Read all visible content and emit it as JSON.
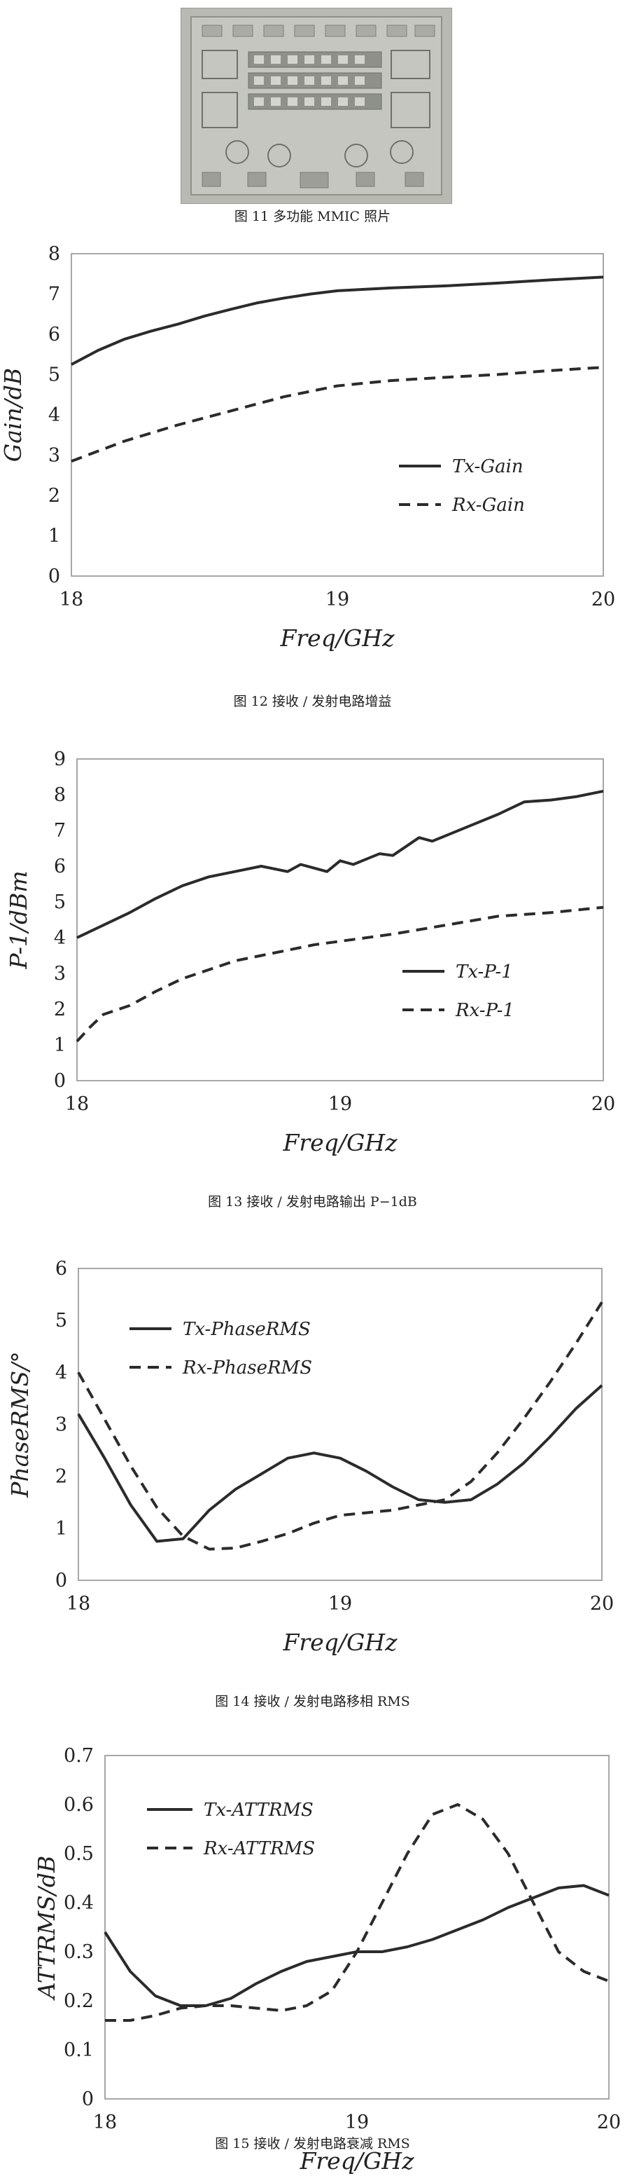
{
  "figure11": {
    "caption": "图 11 多功能 MMIC 照片"
  },
  "charts": [
    {
      "type": "line",
      "caption": "图 12 接收 / 发射电路增益",
      "xlabel": "Freq/GHz",
      "ylabel": "Gain/dB",
      "xlim": [
        18,
        20
      ],
      "ylim": [
        0,
        8
      ],
      "xticks": [
        "18",
        "19",
        "20"
      ],
      "yticks": [
        "0",
        "1",
        "2",
        "3",
        "4",
        "5",
        "6",
        "7",
        "8"
      ],
      "legend_position": "right-middle",
      "series": [
        {
          "name": "Tx-Gain",
          "style": "solid",
          "x": [
            18,
            18.1,
            18.2,
            18.3,
            18.4,
            18.5,
            18.6,
            18.7,
            18.8,
            18.9,
            19,
            19.2,
            19.4,
            19.6,
            19.8,
            20
          ],
          "y": [
            5.25,
            5.6,
            5.88,
            6.08,
            6.25,
            6.45,
            6.62,
            6.78,
            6.9,
            7.0,
            7.08,
            7.15,
            7.2,
            7.27,
            7.35,
            7.42
          ]
        },
        {
          "name": "Rx-Gain",
          "style": "dashed",
          "x": [
            18,
            18.2,
            18.4,
            18.6,
            18.8,
            19,
            19.2,
            19.4,
            19.6,
            19.8,
            20
          ],
          "y": [
            2.85,
            3.35,
            3.75,
            4.1,
            4.45,
            4.72,
            4.85,
            4.93,
            5.0,
            5.1,
            5.18
          ]
        }
      ]
    },
    {
      "type": "line",
      "caption": "图 13 接收 / 发射电路输出 P−1dB",
      "xlabel": "Freq/GHz",
      "ylabel": "P-1/dBm",
      "xlim": [
        18,
        20
      ],
      "ylim": [
        0,
        9
      ],
      "xticks": [
        "18",
        "19",
        "20"
      ],
      "yticks": [
        "0",
        "1",
        "2",
        "3",
        "4",
        "5",
        "6",
        "7",
        "8",
        "9"
      ],
      "legend_position": "right-middle",
      "series": [
        {
          "name": "Tx-P-1",
          "style": "solid",
          "x": [
            18,
            18.1,
            18.2,
            18.3,
            18.4,
            18.5,
            18.6,
            18.7,
            18.8,
            18.85,
            18.9,
            18.95,
            19.0,
            19.05,
            19.1,
            19.15,
            19.2,
            19.3,
            19.35,
            19.4,
            19.5,
            19.6,
            19.7,
            19.8,
            19.9,
            20.0
          ],
          "y": [
            4.0,
            4.35,
            4.7,
            5.1,
            5.45,
            5.7,
            5.85,
            6.0,
            5.85,
            6.05,
            5.95,
            5.85,
            6.15,
            6.05,
            6.2,
            6.35,
            6.3,
            6.8,
            6.7,
            6.85,
            7.15,
            7.45,
            7.8,
            7.85,
            7.95,
            8.1
          ]
        },
        {
          "name": "Rx-P-1",
          "style": "dashed",
          "x": [
            18,
            18.05,
            18.1,
            18.2,
            18.3,
            18.4,
            18.5,
            18.6,
            18.7,
            18.8,
            18.9,
            19.0,
            19.2,
            19.4,
            19.6,
            19.8,
            20.0
          ],
          "y": [
            1.1,
            1.5,
            1.85,
            2.1,
            2.5,
            2.85,
            3.1,
            3.35,
            3.5,
            3.65,
            3.8,
            3.9,
            4.1,
            4.35,
            4.6,
            4.7,
            4.85
          ]
        }
      ]
    },
    {
      "type": "line",
      "caption": "图 14 接收 / 发射电路移相 RMS",
      "xlabel": "Freq/GHz",
      "ylabel": "PhaseRMS/°",
      "xlim": [
        18,
        20
      ],
      "ylim": [
        0,
        6
      ],
      "xticks": [
        "18",
        "19",
        "20"
      ],
      "yticks": [
        "0",
        "1",
        "2",
        "3",
        "4",
        "5",
        "6"
      ],
      "legend_position": "top-left",
      "series": [
        {
          "name": "Tx-PhaseRMS",
          "style": "solid",
          "x": [
            18,
            18.1,
            18.2,
            18.3,
            18.4,
            18.5,
            18.6,
            18.7,
            18.8,
            18.9,
            19.0,
            19.1,
            19.2,
            19.3,
            19.4,
            19.5,
            19.6,
            19.7,
            19.8,
            19.9,
            20.0
          ],
          "y": [
            3.2,
            2.35,
            1.45,
            0.75,
            0.8,
            1.35,
            1.75,
            2.05,
            2.35,
            2.45,
            2.35,
            2.1,
            1.8,
            1.55,
            1.5,
            1.55,
            1.85,
            2.25,
            2.75,
            3.3,
            3.75
          ]
        },
        {
          "name": "Rx-PhaseRMS",
          "style": "dashed",
          "x": [
            18,
            18.1,
            18.2,
            18.3,
            18.4,
            18.5,
            18.6,
            18.7,
            18.8,
            18.9,
            19.0,
            19.1,
            19.2,
            19.3,
            19.4,
            19.5,
            19.6,
            19.7,
            19.8,
            19.9,
            20.0
          ],
          "y": [
            4.0,
            3.1,
            2.2,
            1.4,
            0.85,
            0.6,
            0.62,
            0.75,
            0.9,
            1.1,
            1.25,
            1.3,
            1.35,
            1.45,
            1.55,
            1.9,
            2.45,
            3.1,
            3.8,
            4.55,
            5.35
          ]
        }
      ]
    },
    {
      "type": "line",
      "caption": "图 15 接收 / 发射电路衰减 RMS",
      "xlabel": "Freq/GHz",
      "ylabel": "ATTRMS/dB",
      "xlim": [
        18,
        20
      ],
      "ylim": [
        0,
        0.7
      ],
      "xticks": [
        "18",
        "19",
        "20"
      ],
      "yticks": [
        "0",
        "0.1",
        "0.2",
        "0.3",
        "0.4",
        "0.5",
        "0.6",
        "0.7"
      ],
      "legend_position": "top-left",
      "series": [
        {
          "name": "Tx-ATTRMS",
          "style": "solid",
          "x": [
            18,
            18.1,
            18.2,
            18.3,
            18.4,
            18.5,
            18.6,
            18.7,
            18.8,
            18.9,
            19.0,
            19.1,
            19.2,
            19.3,
            19.4,
            19.5,
            19.6,
            19.7,
            19.8,
            19.9,
            20.0
          ],
          "y": [
            0.34,
            0.26,
            0.21,
            0.19,
            0.19,
            0.205,
            0.235,
            0.26,
            0.28,
            0.29,
            0.3,
            0.3,
            0.31,
            0.325,
            0.345,
            0.365,
            0.39,
            0.41,
            0.43,
            0.435,
            0.415
          ]
        },
        {
          "name": "Rx-ATTRMS",
          "style": "dashed",
          "x": [
            18,
            18.1,
            18.2,
            18.3,
            18.4,
            18.5,
            18.6,
            18.7,
            18.8,
            18.9,
            19.0,
            19.1,
            19.2,
            19.3,
            19.4,
            19.5,
            19.6,
            19.7,
            19.8,
            19.9,
            20.0
          ],
          "y": [
            0.16,
            0.16,
            0.17,
            0.185,
            0.19,
            0.19,
            0.185,
            0.18,
            0.19,
            0.22,
            0.3,
            0.4,
            0.5,
            0.58,
            0.6,
            0.57,
            0.5,
            0.4,
            0.3,
            0.26,
            0.24
          ]
        }
      ]
    }
  ],
  "chart_data": [
    {
      "type": "line",
      "title": "",
      "xlabel": "Freq/GHz",
      "ylabel": "Gain/dB",
      "xlim": [
        18,
        20
      ],
      "ylim": [
        0,
        8
      ],
      "series": [
        {
          "name": "Tx-Gain",
          "x": [
            18,
            18.1,
            18.2,
            18.3,
            18.4,
            18.5,
            18.6,
            18.7,
            18.8,
            18.9,
            19,
            19.2,
            19.4,
            19.6,
            19.8,
            20
          ],
          "y": [
            5.25,
            5.6,
            5.88,
            6.08,
            6.25,
            6.45,
            6.62,
            6.78,
            6.9,
            7.0,
            7.08,
            7.15,
            7.2,
            7.27,
            7.35,
            7.42
          ]
        },
        {
          "name": "Rx-Gain",
          "x": [
            18,
            18.2,
            18.4,
            18.6,
            18.8,
            19,
            19.2,
            19.4,
            19.6,
            19.8,
            20
          ],
          "y": [
            2.85,
            3.35,
            3.75,
            4.1,
            4.45,
            4.72,
            4.85,
            4.93,
            5.0,
            5.1,
            5.18
          ]
        }
      ]
    },
    {
      "type": "line",
      "title": "",
      "xlabel": "Freq/GHz",
      "ylabel": "P-1/dBm",
      "xlim": [
        18,
        20
      ],
      "ylim": [
        0,
        9
      ],
      "series": [
        {
          "name": "Tx-P-1",
          "x": [
            18,
            18.1,
            18.2,
            18.3,
            18.4,
            18.5,
            18.6,
            18.7,
            18.8,
            18.85,
            18.9,
            18.95,
            19.0,
            19.05,
            19.1,
            19.15,
            19.2,
            19.3,
            19.35,
            19.4,
            19.5,
            19.6,
            19.7,
            19.8,
            19.9,
            20.0
          ],
          "y": [
            4.0,
            4.35,
            4.7,
            5.1,
            5.45,
            5.7,
            5.85,
            6.0,
            5.85,
            6.05,
            5.95,
            5.85,
            6.15,
            6.05,
            6.2,
            6.35,
            6.3,
            6.8,
            6.7,
            6.85,
            7.15,
            7.45,
            7.8,
            7.85,
            7.95,
            8.1
          ]
        },
        {
          "name": "Rx-P-1",
          "x": [
            18,
            18.05,
            18.1,
            18.2,
            18.3,
            18.4,
            18.5,
            18.6,
            18.7,
            18.8,
            18.9,
            19.0,
            19.2,
            19.4,
            19.6,
            19.8,
            20.0
          ],
          "y": [
            1.1,
            1.5,
            1.85,
            2.1,
            2.5,
            2.85,
            3.1,
            3.35,
            3.5,
            3.65,
            3.8,
            3.9,
            4.1,
            4.35,
            4.6,
            4.7,
            4.85
          ]
        }
      ]
    },
    {
      "type": "line",
      "title": "",
      "xlabel": "Freq/GHz",
      "ylabel": "PhaseRMS/°",
      "xlim": [
        18,
        20
      ],
      "ylim": [
        0,
        6
      ],
      "series": [
        {
          "name": "Tx-PhaseRMS",
          "x": [
            18,
            18.1,
            18.2,
            18.3,
            18.4,
            18.5,
            18.6,
            18.7,
            18.8,
            18.9,
            19.0,
            19.1,
            19.2,
            19.3,
            19.4,
            19.5,
            19.6,
            19.7,
            19.8,
            19.9,
            20.0
          ],
          "y": [
            3.2,
            2.35,
            1.45,
            0.75,
            0.8,
            1.35,
            1.75,
            2.05,
            2.35,
            2.45,
            2.35,
            2.1,
            1.8,
            1.55,
            1.5,
            1.55,
            1.85,
            2.25,
            2.75,
            3.3,
            3.75
          ]
        },
        {
          "name": "Rx-PhaseRMS",
          "x": [
            18,
            18.1,
            18.2,
            18.3,
            18.4,
            18.5,
            18.6,
            18.7,
            18.8,
            18.9,
            19.0,
            19.1,
            19.2,
            19.3,
            19.4,
            19.5,
            19.6,
            19.7,
            19.8,
            19.9,
            20.0
          ],
          "y": [
            4.0,
            3.1,
            2.2,
            1.4,
            0.85,
            0.6,
            0.62,
            0.75,
            0.9,
            1.1,
            1.25,
            1.3,
            1.35,
            1.45,
            1.55,
            1.9,
            2.45,
            3.1,
            3.8,
            4.55,
            5.35
          ]
        }
      ]
    },
    {
      "type": "line",
      "title": "",
      "xlabel": "Freq/GHz",
      "ylabel": "ATTRMS/dB",
      "xlim": [
        18,
        20
      ],
      "ylim": [
        0,
        0.7
      ],
      "series": [
        {
          "name": "Tx-ATTRMS",
          "x": [
            18,
            18.1,
            18.2,
            18.3,
            18.4,
            18.5,
            18.6,
            18.7,
            18.8,
            18.9,
            19.0,
            19.1,
            19.2,
            19.3,
            19.4,
            19.5,
            19.6,
            19.7,
            19.8,
            19.9,
            20.0
          ],
          "y": [
            0.34,
            0.26,
            0.21,
            0.19,
            0.19,
            0.205,
            0.235,
            0.26,
            0.28,
            0.29,
            0.3,
            0.3,
            0.31,
            0.325,
            0.345,
            0.365,
            0.39,
            0.41,
            0.43,
            0.435,
            0.415
          ]
        },
        {
          "name": "Rx-ATTRMS",
          "x": [
            18,
            18.1,
            18.2,
            18.3,
            18.4,
            18.5,
            18.6,
            18.7,
            18.8,
            18.9,
            19.0,
            19.1,
            19.2,
            19.3,
            19.4,
            19.5,
            19.6,
            19.7,
            19.8,
            19.9,
            20.0
          ],
          "y": [
            0.16,
            0.16,
            0.17,
            0.185,
            0.19,
            0.19,
            0.185,
            0.18,
            0.19,
            0.22,
            0.3,
            0.4,
            0.5,
            0.58,
            0.6,
            0.57,
            0.5,
            0.4,
            0.3,
            0.26,
            0.24
          ]
        }
      ]
    }
  ]
}
